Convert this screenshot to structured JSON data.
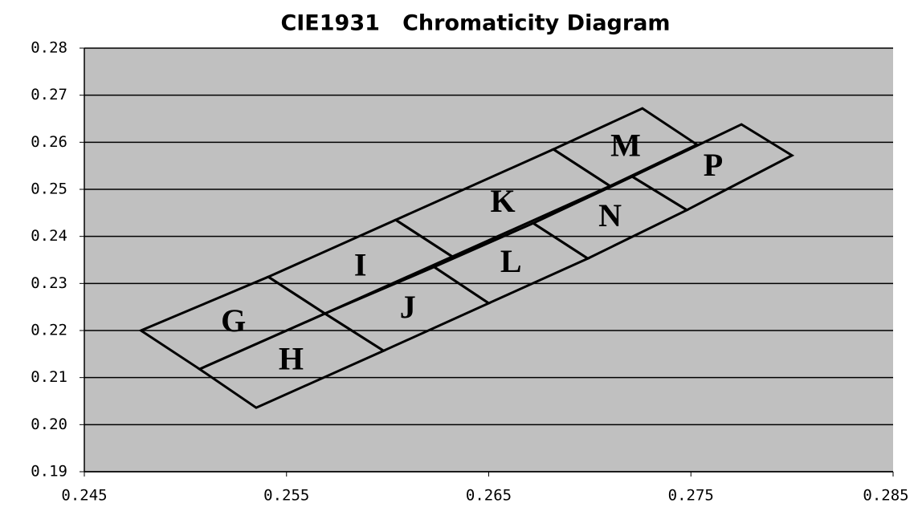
{
  "chart_data": {
    "type": "polygon",
    "title": "CIE1931   Chromaticity Diagram",
    "xlim": [
      0.245,
      0.285
    ],
    "xticks": [
      0.245,
      0.255,
      0.265,
      0.275,
      0.285
    ],
    "ylim": [
      0.19,
      0.28
    ],
    "yticks": [
      0.19,
      {
        "value": 0.2,
        "label": "0.20"
      },
      0.21,
      0.22,
      0.23,
      0.24,
      0.25,
      0.26,
      0.27,
      0.28
    ],
    "grid": true,
    "color": "#000000",
    "series": [
      {
        "name": "G",
        "x": [
          0.2478,
          0.2541,
          0.2569,
          0.2507
        ],
        "values": [
          0.22,
          0.2314,
          0.2236,
          0.2118
        ]
      },
      {
        "name": "I",
        "x": [
          0.2541,
          0.2604,
          0.2632,
          0.2569
        ],
        "values": [
          0.2314,
          0.2435,
          0.2357,
          0.2236
        ]
      },
      {
        "name": "K",
        "x": [
          0.2604,
          0.2682,
          0.271,
          0.2632
        ],
        "values": [
          0.2435,
          0.2585,
          0.2507,
          0.2357
        ]
      },
      {
        "name": "M",
        "x": [
          0.2682,
          0.2726,
          0.2753,
          0.271
        ],
        "values": [
          0.2585,
          0.2672,
          0.2595,
          0.2507
        ]
      },
      {
        "name": "H",
        "x": [
          0.2507,
          0.2569,
          0.2598,
          0.2535
        ],
        "values": [
          0.2118,
          0.2236,
          0.2157,
          0.2036
        ]
      },
      {
        "name": "J",
        "x": [
          0.2569,
          0.2623,
          0.265,
          0.2598
        ],
        "values": [
          0.2236,
          0.2335,
          0.2258,
          0.2157
        ]
      },
      {
        "name": "L",
        "x": [
          0.2623,
          0.2672,
          0.2699,
          0.265
        ],
        "values": [
          0.2335,
          0.2428,
          0.2353,
          0.2258
        ]
      },
      {
        "name": "N",
        "x": [
          0.2672,
          0.2721,
          0.2748,
          0.2699
        ],
        "values": [
          0.2428,
          0.2527,
          0.2456,
          0.2353
        ]
      },
      {
        "name": "P",
        "x": [
          0.2721,
          0.2775,
          0.28,
          0.2748
        ],
        "values": [
          0.2527,
          0.2638,
          0.2572,
          0.2456
        ]
      }
    ]
  }
}
